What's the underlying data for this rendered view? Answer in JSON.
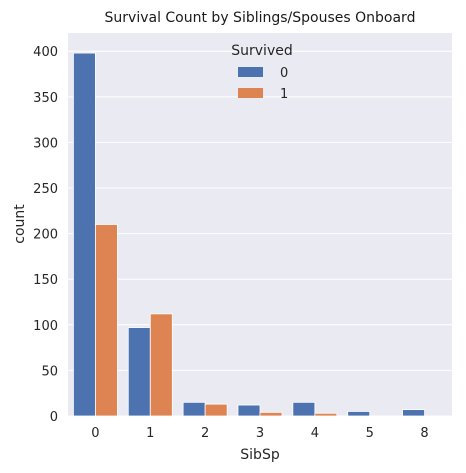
{
  "chart_data": {
    "type": "bar",
    "title": "Survival Count by Siblings/Spouses Onboard",
    "xlabel": "SibSp",
    "ylabel": "count",
    "categories": [
      "0",
      "1",
      "2",
      "3",
      "4",
      "5",
      "8"
    ],
    "series": [
      {
        "name": "0",
        "color": "#4c72b0",
        "values": [
          398,
          97,
          15,
          12,
          15,
          5,
          7
        ]
      },
      {
        "name": "1",
        "color": "#dd8452",
        "values": [
          210,
          112,
          13,
          4,
          3,
          0,
          0
        ]
      }
    ],
    "ylim": [
      0,
      420
    ],
    "yticks": [
      0,
      50,
      100,
      150,
      200,
      250,
      300,
      350,
      400
    ],
    "grid": true,
    "legend": {
      "title": "Survived",
      "placement": "top-center"
    },
    "background": "#eaeaf2"
  }
}
